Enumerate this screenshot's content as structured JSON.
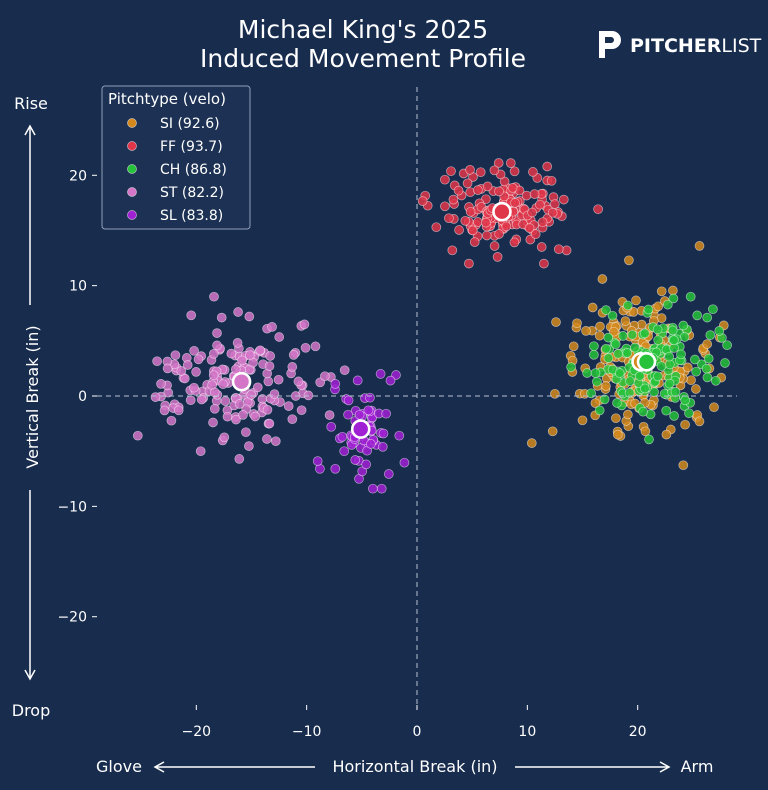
{
  "brand": {
    "name_bold": "PITCHER",
    "name_light": "LIST"
  },
  "chart_data": {
    "type": "scatter",
    "title_line1": "Michael King's 2025",
    "title_line2": "Induced Movement Profile",
    "xlabel": "Horizontal Break (in)",
    "ylabel": "Vertical Break (in)",
    "x_left_label": "Glove",
    "x_right_label": "Arm",
    "y_top_label": "Rise",
    "y_bottom_label": "Drop",
    "xlim": [
      -29,
      29
    ],
    "ylim": [
      -28,
      28
    ],
    "x_ticks": [
      -20,
      -10,
      0,
      10,
      20
    ],
    "y_ticks": [
      -20,
      -10,
      0,
      10,
      20
    ],
    "legend_title": "Pitchtype (velo)",
    "legend_position": "top-left",
    "series": [
      {
        "name": "SI (92.6)",
        "color": "#d4891c",
        "mean": [
          20.3,
          3.1
        ],
        "count": 190,
        "spread": [
          2.8,
          2.6
        ],
        "points": [
          [
            12.3,
            -3.2
          ],
          [
            12.5,
            0.2
          ],
          [
            12.6,
            6.7
          ],
          [
            14.1,
            3.2
          ],
          [
            14.2,
            4.5
          ],
          [
            14.5,
            6.6
          ],
          [
            15.0,
            -2.2
          ],
          [
            15.2,
            0.2
          ],
          [
            16.8,
            10.6
          ],
          [
            19.2,
            12.3
          ],
          [
            25.6,
            13.6
          ],
          [
            25.6,
            -2.3
          ],
          [
            24.3,
            -2.6
          ],
          [
            22.6,
            -3.5
          ],
          [
            18.2,
            -3.5
          ],
          [
            20.7,
            -3.2
          ],
          [
            27.8,
            6.4
          ],
          [
            26.3,
            4.7
          ],
          [
            26.5,
            2.5
          ]
        ]
      },
      {
        "name": "FF (93.7)",
        "color": "#e0364a",
        "mean": [
          7.7,
          16.7
        ],
        "count": 150,
        "spread": [
          2.8,
          1.8
        ],
        "points": [
          [
            4.8,
            20.5
          ],
          [
            8.5,
            21.1
          ],
          [
            11.8,
            20.8
          ],
          [
            13.3,
            17.8
          ],
          [
            12.3,
            16.6
          ],
          [
            11.3,
            13.5
          ],
          [
            11.5,
            12.0
          ],
          [
            4.7,
            12.0
          ],
          [
            3.2,
            13.2
          ],
          [
            7.3,
            12.6
          ],
          [
            12.2,
            19.5
          ],
          [
            3.3,
            17.8
          ]
        ]
      },
      {
        "name": "CH (86.8)",
        "color": "#25c23a",
        "mean": [
          20.8,
          3.1
        ],
        "count": 150,
        "spread": [
          2.6,
          2.4
        ],
        "points": [
          [
            19.1,
            8.2
          ],
          [
            24.8,
            9.0
          ],
          [
            26.3,
            7.1
          ],
          [
            27.4,
            5.9
          ],
          [
            28.1,
            4.6
          ],
          [
            17.0,
            -0.3
          ],
          [
            23.3,
            -1.8
          ],
          [
            25.3,
            2.2
          ]
        ]
      },
      {
        "name": "ST (82.2)",
        "color": "#d475c8",
        "mean": [
          -15.9,
          1.3
        ],
        "count": 150,
        "spread": [
          3.6,
          2.5
        ],
        "points": [
          [
            -25.3,
            -3.6
          ],
          [
            -23.2,
            1.1
          ],
          [
            -23.7,
            -0.1
          ],
          [
            -19.6,
            -5.0
          ],
          [
            -18.4,
            9.0
          ],
          [
            -16.1,
            -5.7
          ],
          [
            -15.2,
            7.2
          ],
          [
            -10.2,
            6.5
          ],
          [
            -9.2,
            4.5
          ],
          [
            -11.3,
            -2.1
          ],
          [
            -12.8,
            -4.1
          ],
          [
            -13.6,
            -3.9
          ],
          [
            -17.7,
            7.1
          ],
          [
            -20.2,
            4.1
          ],
          [
            -21.6,
            -1.3
          ],
          [
            -22.6,
            2.5
          ]
        ]
      },
      {
        "name": "SL (83.8)",
        "color": "#a021d4",
        "mean": [
          -5.1,
          -3.0
        ],
        "count": 50,
        "spread": [
          1.5,
          2.0
        ],
        "points": [
          [
            -7.4,
            -6.6
          ],
          [
            -8.8,
            -6.6
          ],
          [
            -9.0,
            -5.9
          ],
          [
            -3.2,
            -8.4
          ],
          [
            -4.0,
            -8.4
          ],
          [
            -1.6,
            -3.6
          ],
          [
            -1.9,
            1.9
          ],
          [
            -3.3,
            2.0
          ],
          [
            -7.4,
            1.1
          ],
          [
            -5.2,
            -1.7
          ],
          [
            -3.1,
            -4.6
          ],
          [
            -6.2,
            -0.4
          ],
          [
            -4.6,
            -6.2
          ],
          [
            -5.6,
            -5.8
          ],
          [
            -2.4,
            1.4
          ],
          [
            -2.8,
            -1.6
          ],
          [
            -4.4,
            -1.3
          ],
          [
            -6.6,
            -5.0
          ]
        ]
      }
    ]
  }
}
